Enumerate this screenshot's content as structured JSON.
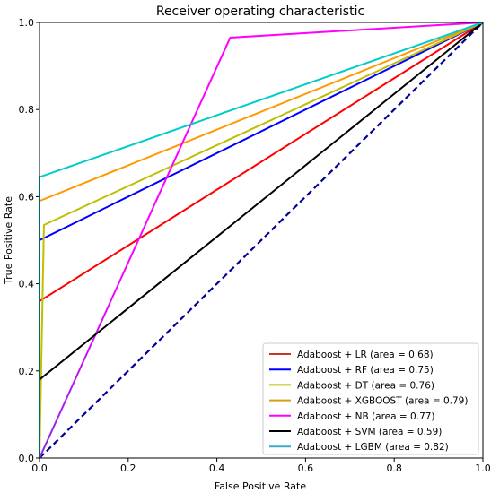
{
  "chart_data": {
    "type": "line",
    "title": "Receiver operating characteristic",
    "xlabel": "False Positive Rate",
    "ylabel": "True Positive Rate",
    "xlim": [
      0.0,
      1.0
    ],
    "ylim": [
      0.0,
      1.0
    ],
    "xticks": [
      "0.0",
      "0.2",
      "0.4",
      "0.6",
      "0.8",
      "1.0"
    ],
    "yticks": [
      "0.0",
      "0.2",
      "0.4",
      "0.6",
      "0.8",
      "1.0"
    ],
    "xtick_values": [
      0.0,
      0.2,
      0.4,
      0.6,
      0.8,
      1.0
    ],
    "ytick_values": [
      0.0,
      0.2,
      0.4,
      0.6,
      0.8,
      1.0
    ],
    "grid": false,
    "legend_position": "lower-right",
    "series": [
      {
        "name": "Adaboost + LR (area = 0.68)",
        "color": "#ff0000",
        "legend_color": "#c0392b",
        "x": [
          0,
          0,
          1
        ],
        "y": [
          0,
          0.36,
          1
        ],
        "gradient_from": "#ff00ff"
      },
      {
        "name": "Adaboost + RF (area = 0.75)",
        "color": "#0000ff",
        "x": [
          0,
          0,
          1
        ],
        "y": [
          0,
          0.5,
          1
        ]
      },
      {
        "name": "Adaboost + DT (area = 0.76)",
        "color": "#bfbf00",
        "x": [
          0,
          0.01,
          1
        ],
        "y": [
          0,
          0.535,
          1
        ]
      },
      {
        "name": "Adaboost + XGBOOST (area = 0.79)",
        "color": "#ff9900",
        "legend_color": "#d4a017",
        "x": [
          0,
          0,
          1
        ],
        "y": [
          0,
          0.59,
          1
        ]
      },
      {
        "name": "Adaboost + NB (area = 0.77)",
        "color": "#ff00ff",
        "x": [
          0,
          0.43,
          1
        ],
        "y": [
          0,
          0.965,
          1
        ],
        "gradient_from": "#8a2be2"
      },
      {
        "name": "Adaboost + SVM (area = 0.59)",
        "color": "#000000",
        "x": [
          0,
          0,
          1
        ],
        "y": [
          0,
          0.18,
          1
        ]
      },
      {
        "name": "Adaboost + LGBM (area = 0.82)",
        "color": "#00cccc",
        "legend_color": "#3fa9c9",
        "x": [
          0,
          0,
          1
        ],
        "y": [
          0,
          0.645,
          1
        ]
      }
    ],
    "reference_line": {
      "color": "#000099",
      "style": "dashed",
      "x": [
        0,
        1
      ],
      "y": [
        0,
        1
      ]
    }
  }
}
